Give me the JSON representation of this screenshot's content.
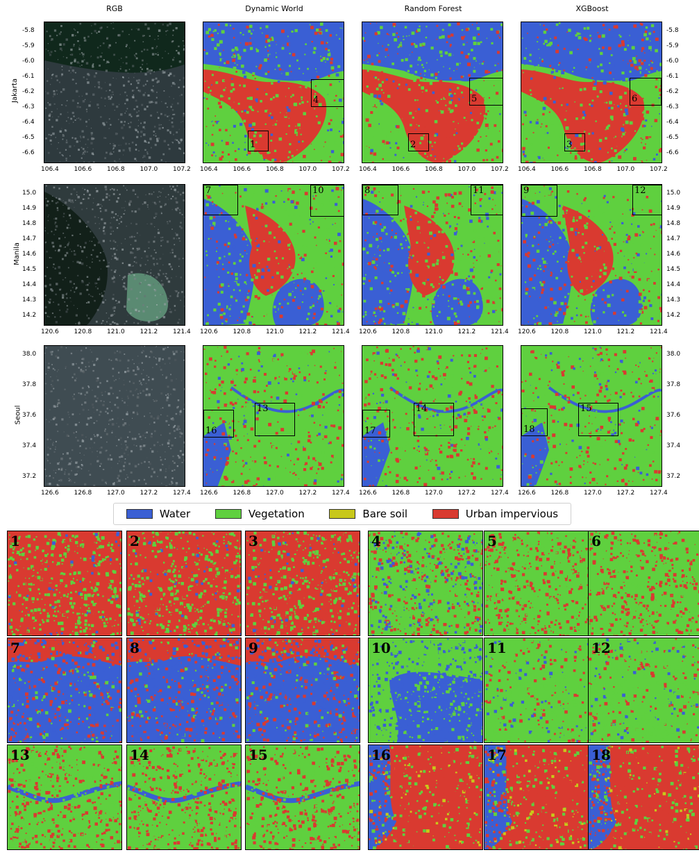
{
  "columns": [
    "RGB",
    "Dynamic World",
    "Random Forest",
    "XGBoost"
  ],
  "rows": [
    {
      "name": "Jakarta",
      "xticks": [
        "106.4",
        "106.6",
        "106.8",
        "107.0",
        "107.2"
      ],
      "yticks": [
        "-5.8",
        "-5.9",
        "-6.0",
        "-6.1",
        "-6.2",
        "-6.3",
        "-6.4",
        "-6.5",
        "-6.6"
      ]
    },
    {
      "name": "Manila",
      "xticks": [
        "120.6",
        "120.8",
        "121.0",
        "121.2",
        "121.4"
      ],
      "yticks": [
        "15.0",
        "14.9",
        "14.8",
        "14.7",
        "14.6",
        "14.5",
        "14.4",
        "14.3",
        "14.2"
      ]
    },
    {
      "name": "Seoul",
      "xticks": [
        "126.6",
        "126.8",
        "127.0",
        "127.2",
        "127.4"
      ],
      "yticks": [
        "38.0",
        "37.8",
        "37.6",
        "37.4",
        "37.2"
      ]
    }
  ],
  "legend": [
    {
      "label": "Water",
      "color": "#3a5fd4"
    },
    {
      "label": "Vegetation",
      "color": "#5fd03f"
    },
    {
      "label": "Bare soil",
      "color": "#c8c81a"
    },
    {
      "label": "Urban impervious",
      "color": "#d93a30"
    }
  ],
  "box_labels": [
    "1",
    "2",
    "3",
    "4",
    "5",
    "6",
    "7",
    "8",
    "9",
    "10",
    "11",
    "12",
    "13",
    "14",
    "15",
    "16",
    "17",
    "18"
  ],
  "colors": {
    "water": "#3a5fd4",
    "vegetation": "#5fd03f",
    "bare": "#c8c81a",
    "urban": "#d93a30"
  }
}
